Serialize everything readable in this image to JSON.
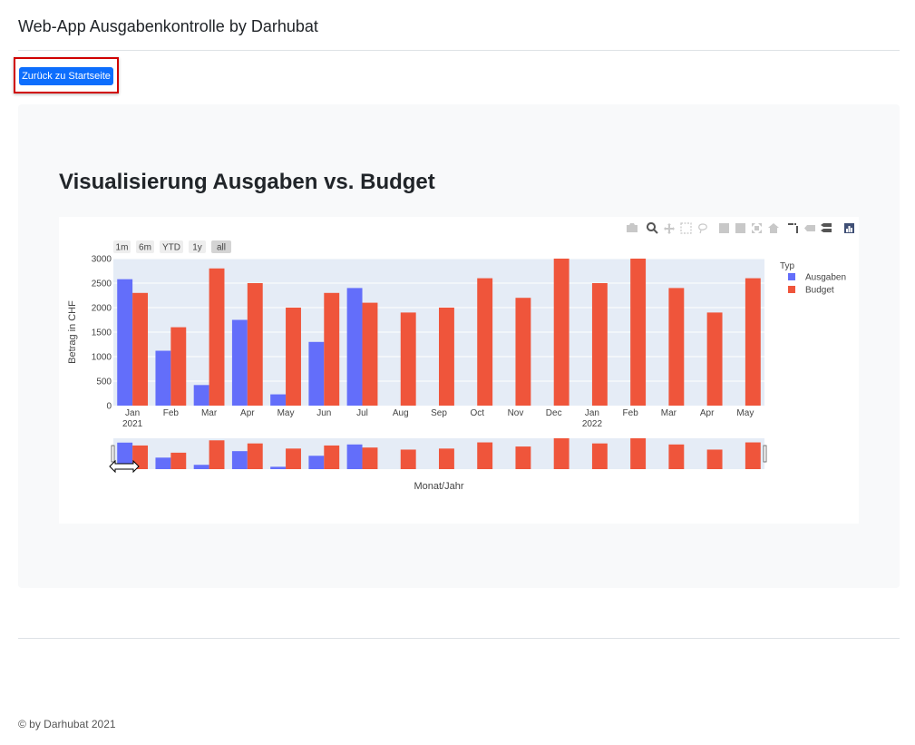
{
  "header": {
    "title": "Web-App Ausgabenkontrolle by Darhubat"
  },
  "toolbar": {
    "back_label": "Zurück zu Startseite"
  },
  "main": {
    "title": "Visualisierung Ausgaben vs. Budget"
  },
  "footer": {
    "text": "© by Darhubat 2021"
  },
  "chart_data": {
    "type": "bar",
    "title": "",
    "xlabel": "Monat/Jahr",
    "ylabel": "Betrag in CHF",
    "categories": [
      "Jan",
      "Feb",
      "Mar",
      "Apr",
      "May",
      "Jun",
      "Jul",
      "Aug",
      "Sep",
      "Oct",
      "Nov",
      "Dec",
      "Jan",
      "Feb",
      "Mar",
      "Apr",
      "May"
    ],
    "year_labels": [
      {
        "index": 0,
        "text": "2021"
      },
      {
        "index": 12,
        "text": "2022"
      }
    ],
    "legend_title": "Typ",
    "legend_position": "top-right",
    "series": [
      {
        "name": "Ausgaben",
        "color": "#636efa",
        "values": [
          2580,
          1120,
          420,
          1750,
          230,
          1300,
          2400,
          null,
          null,
          null,
          null,
          null,
          null,
          null,
          null,
          null,
          null
        ]
      },
      {
        "name": "Budget",
        "color": "#ef553b",
        "values": [
          2300,
          1600,
          2800,
          2500,
          2000,
          2300,
          2100,
          1900,
          2000,
          2600,
          2200,
          3000,
          2500,
          3000,
          2400,
          1900,
          2600
        ]
      }
    ],
    "ylim": [
      0,
      3000
    ],
    "yticks": [
      0,
      500,
      1000,
      1500,
      2000,
      2500,
      3000
    ],
    "grid": true,
    "rangeselector": [
      "1m",
      "6m",
      "YTD",
      "1y",
      "all"
    ],
    "rangeselector_active": "all",
    "rangeslider": true
  }
}
